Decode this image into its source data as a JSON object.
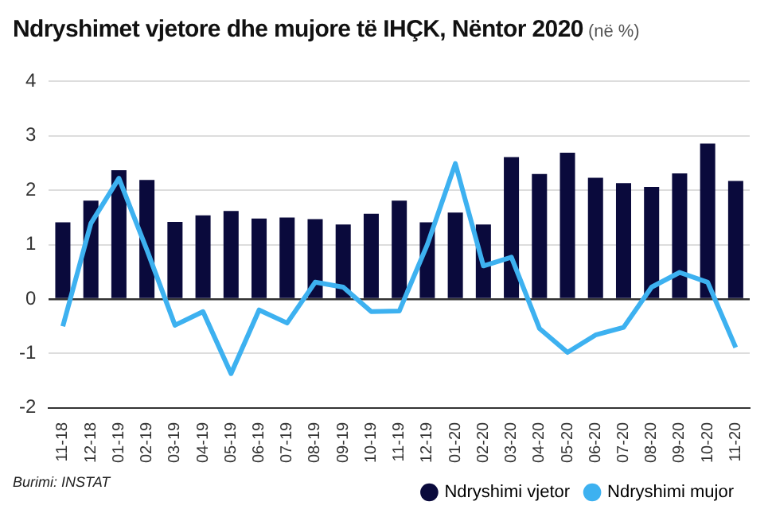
{
  "chart_data": {
    "type": "bar",
    "title": "Ndryshimet vjetore dhe mujore të IHÇK, Nëntor 2020",
    "subtitle": "(në %)",
    "categories": [
      "11-18",
      "12-18",
      "01-19",
      "02-19",
      "03-19",
      "04-19",
      "05-19",
      "06-19",
      "07-19",
      "08-19",
      "09-19",
      "10-19",
      "11-19",
      "12-19",
      "01-20",
      "02-20",
      "03-20",
      "04-20",
      "05-20",
      "06-20",
      "07-20",
      "08-20",
      "09-20",
      "10-20",
      "11-20"
    ],
    "series": [
      {
        "name": "Ndryshimi vjetor",
        "color": "#0a0a3c",
        "values": [
          1.41,
          1.81,
          2.37,
          2.19,
          1.42,
          1.54,
          1.62,
          1.48,
          1.5,
          1.47,
          1.37,
          1.57,
          1.81,
          1.41,
          1.59,
          1.37,
          2.61,
          2.3,
          2.69,
          2.23,
          2.13,
          2.06,
          2.31,
          2.86,
          2.17
        ]
      },
      {
        "name": "Ndryshimi mujor",
        "type": "line",
        "color": "#3db1f0",
        "values": [
          -0.5,
          1.39,
          2.22,
          0.9,
          -0.48,
          -0.23,
          -1.37,
          -0.2,
          -0.44,
          0.31,
          0.22,
          -0.23,
          -0.22,
          1.0,
          2.49,
          0.61,
          0.77,
          -0.54,
          -0.98,
          -0.66,
          -0.52,
          0.22,
          0.49,
          0.31,
          -0.89
        ]
      }
    ],
    "ylim": [
      -2,
      4
    ],
    "yticks": [
      -2,
      -1,
      0,
      1,
      2,
      3,
      4
    ],
    "grid": "y",
    "legend": "bottom right",
    "marker": "none",
    "annotations": [
      "Burimi: INSTAT"
    ]
  }
}
